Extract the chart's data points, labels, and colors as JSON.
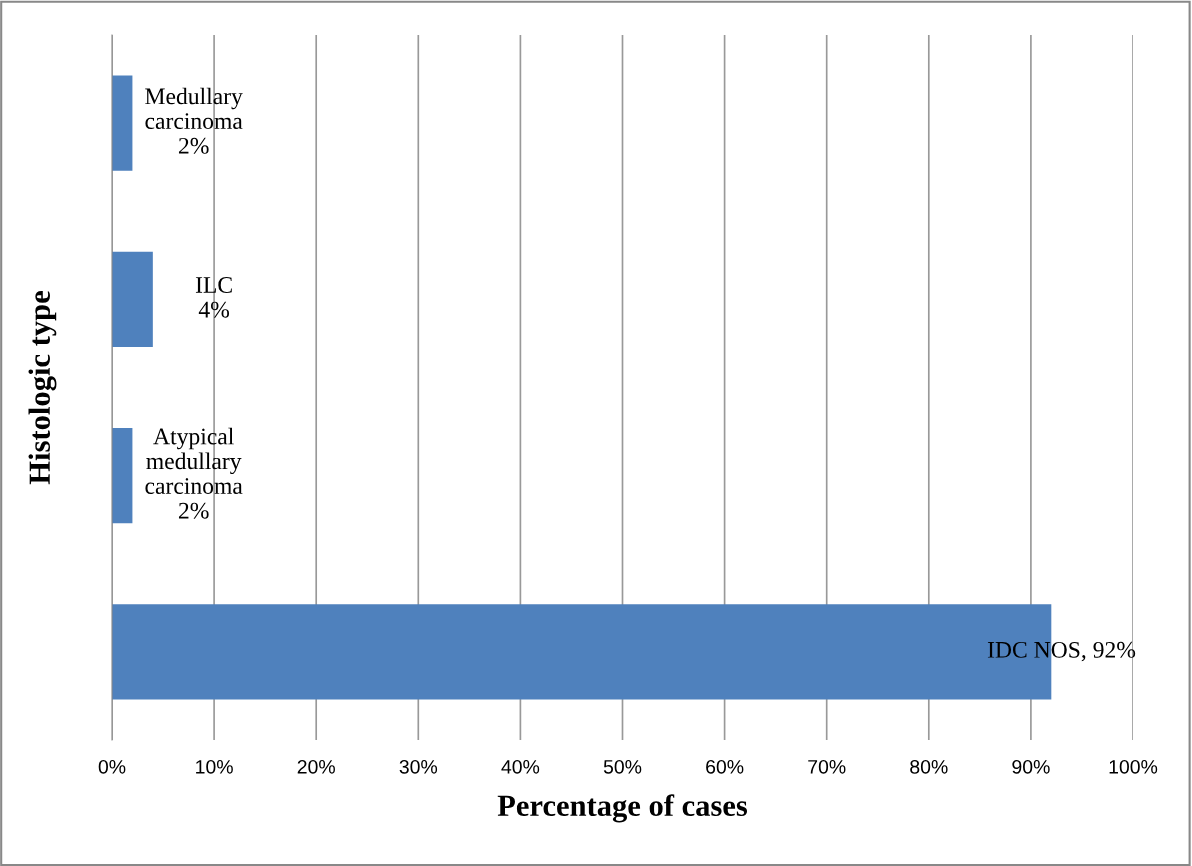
{
  "chart_data": {
    "type": "bar",
    "orientation": "horizontal",
    "xlabel": "Percentage of cases",
    "ylabel": "Histologic type",
    "categories": [
      null,
      null,
      null,
      null
    ],
    "values": [
      2,
      4,
      2,
      92
    ],
    "value_labels": [
      "Medullary\ncarcinoma\n2%",
      "ILC\n4%",
      "Atypical\nmedullary\ncarcinoma\n2%",
      "IDC NOS, 92%"
    ],
    "color": "#4f81bd",
    "xlim": [
      0,
      100
    ],
    "xticks": [
      {
        "value": 0,
        "label": "0%"
      },
      {
        "value": 10,
        "label": "10%"
      },
      {
        "value": 20,
        "label": "20%"
      },
      {
        "value": 30,
        "label": "30%"
      },
      {
        "value": 40,
        "label": "40%"
      },
      {
        "value": 50,
        "label": "50%"
      },
      {
        "value": 60,
        "label": "60%"
      },
      {
        "value": 70,
        "label": "70%"
      },
      {
        "value": 80,
        "label": "80%"
      },
      {
        "value": 90,
        "label": "90%"
      },
      {
        "value": 100,
        "label": "100%"
      }
    ],
    "grid": "x",
    "tick_labels": "x"
  }
}
